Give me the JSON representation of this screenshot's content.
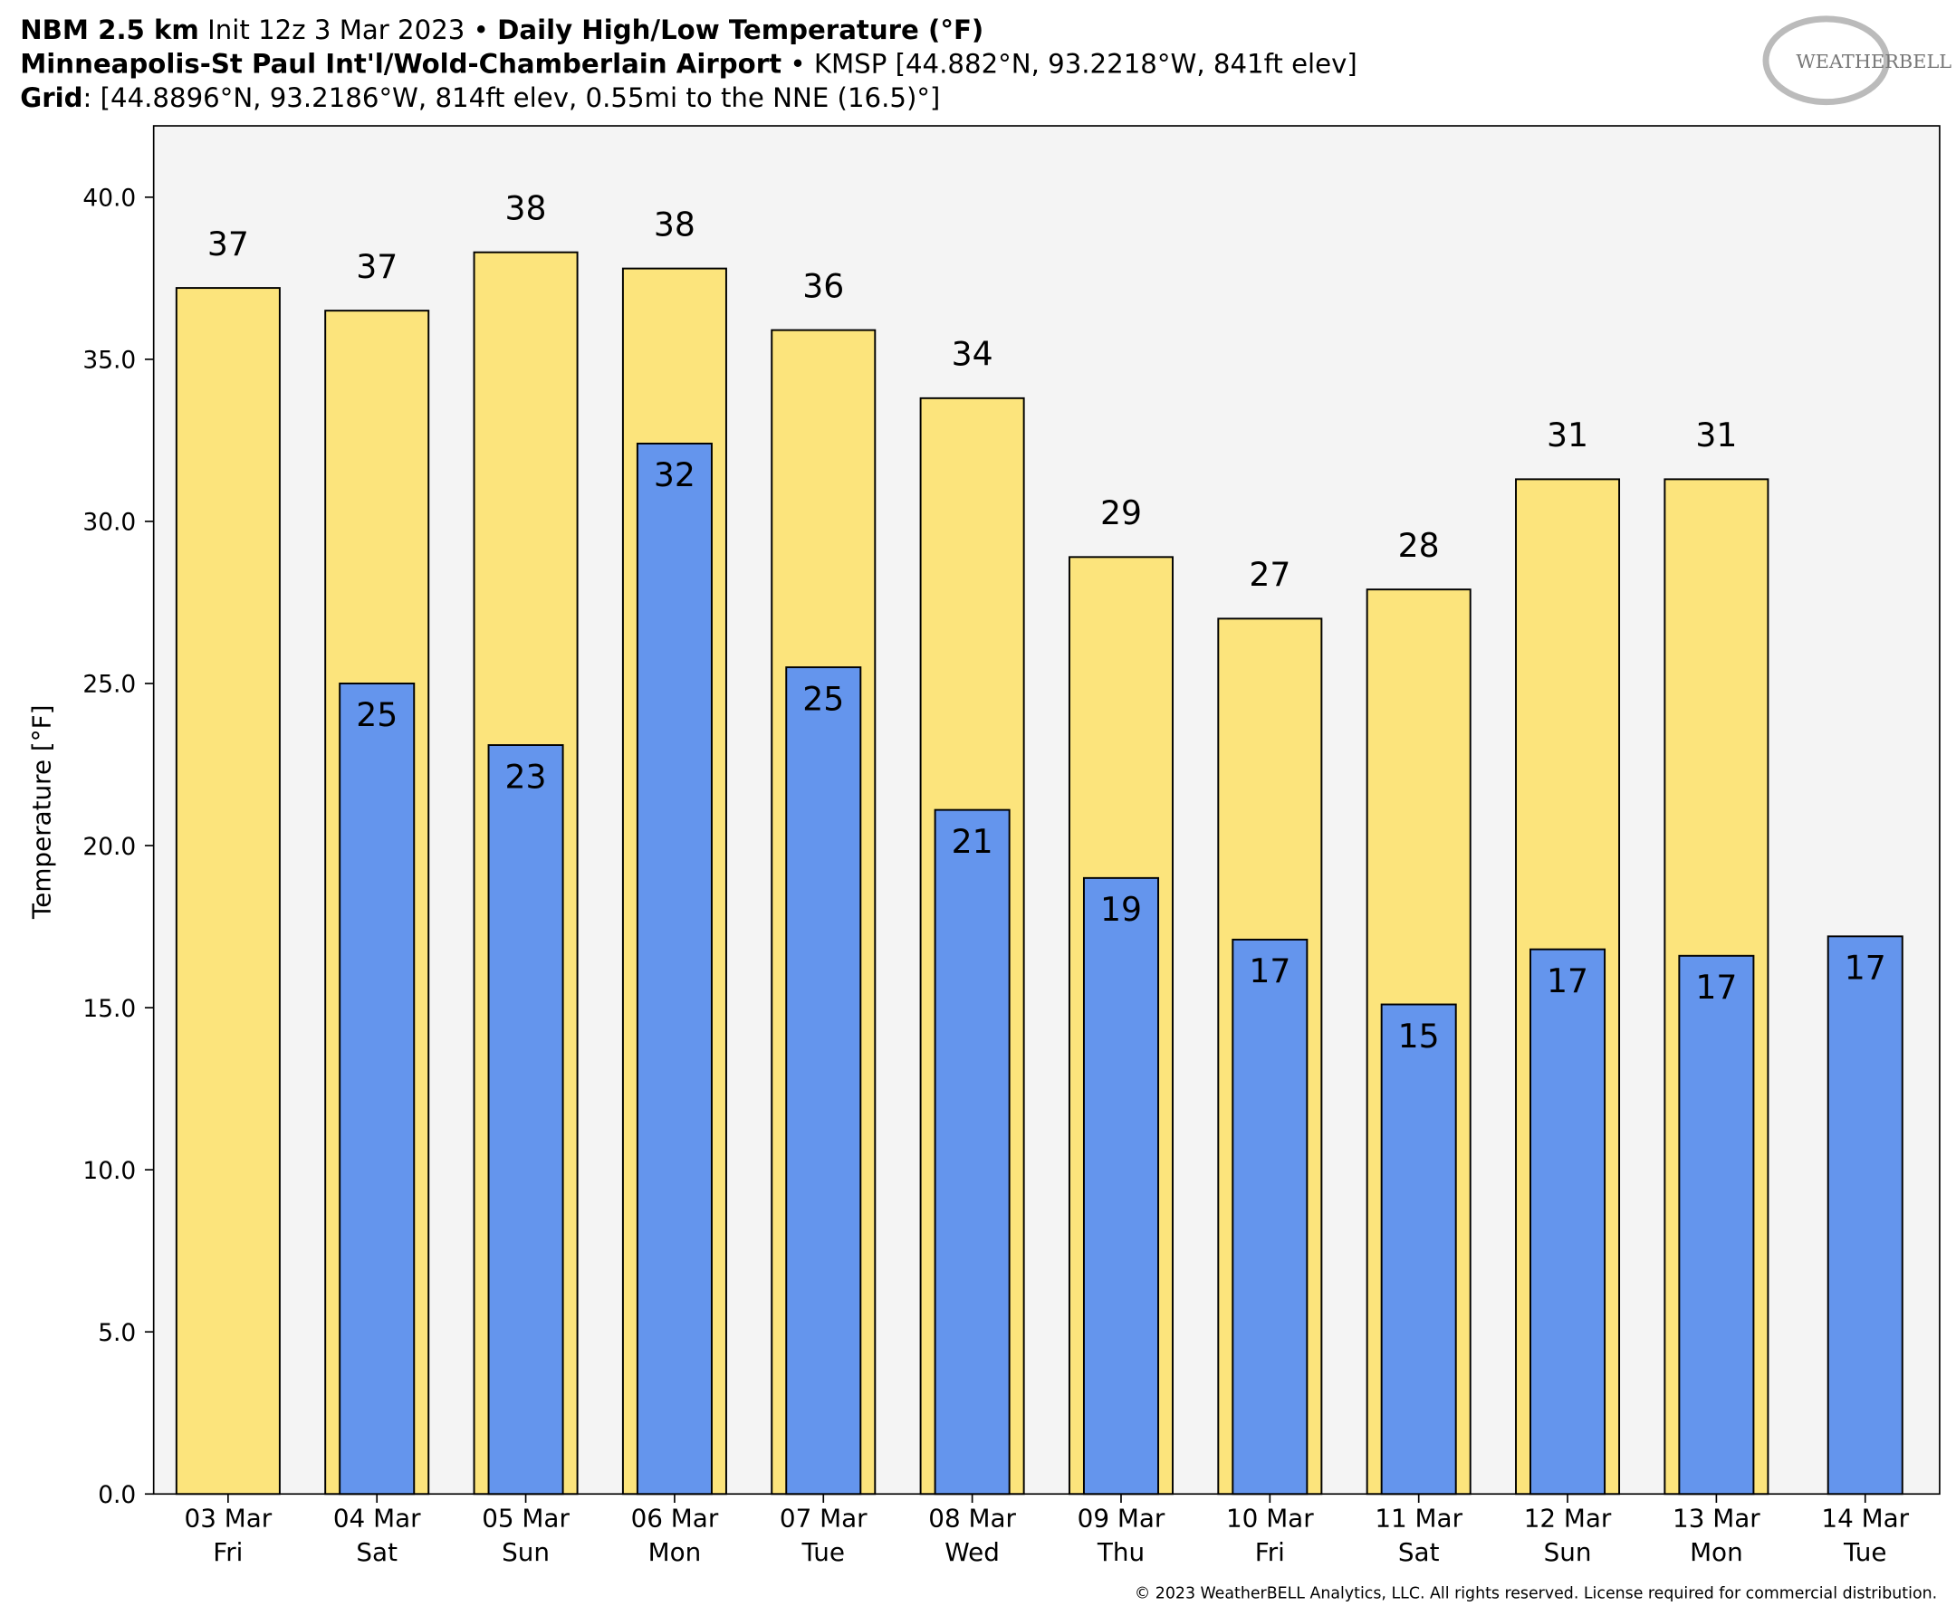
{
  "chart_data": {
    "type": "bar",
    "title": {
      "model": "NBM 2.5 km",
      "init": "Init 12z 3 Mar 2023 •",
      "product": "Daily High/Low Temperature (°F)"
    },
    "subtitle": {
      "station": "Minneapolis-St Paul Int'l/Wold-Chamberlain Airport",
      "station_info": "• KMSP [44.882°N, 93.2218°W, 841ft elev]",
      "grid_key": "Grid",
      "grid_info": ": [44.8896°N, 93.2186°W, 814ft elev, 0.55mi to the NNE (16.5)°]"
    },
    "logo": "WEATHERBELL",
    "y_label": "Temperature [°F]",
    "copyright": "© 2023 WeatherBELL Analytics, LLC. All rights reserved. License required for commercial distribution.",
    "categories": [
      "03 Mar",
      "04 Mar",
      "05 Mar",
      "06 Mar",
      "07 Mar",
      "08 Mar",
      "09 Mar",
      "10 Mar",
      "11 Mar",
      "12 Mar",
      "13 Mar",
      "14 Mar"
    ],
    "weekdays": [
      "Fri",
      "Sat",
      "Sun",
      "Mon",
      "Tue",
      "Wed",
      "Thu",
      "Fri",
      "Sat",
      "Sun",
      "Mon",
      "Tue"
    ],
    "series": [
      {
        "color": "#fce47c",
        "values": [
          37.2,
          36.5,
          38.3,
          37.8,
          35.9,
          33.8,
          28.9,
          27.0,
          27.9,
          31.3,
          31.3,
          null
        ],
        "value_labels": [
          "37",
          "37",
          "38",
          "38",
          "36",
          "34",
          "29",
          "27",
          "28",
          "31",
          "31",
          null
        ]
      },
      {
        "color": "#6495ed",
        "values": [
          null,
          25.0,
          23.1,
          32.4,
          25.5,
          21.1,
          19.0,
          17.1,
          15.1,
          16.8,
          16.6,
          17.2
        ],
        "value_labels": [
          null,
          "25",
          "23",
          "32",
          "25",
          "21",
          "19",
          "17",
          "15",
          "17",
          "17",
          "17"
        ]
      }
    ],
    "ylim": [
      0,
      42.2
    ],
    "yticks": [
      {
        "value": 0,
        "label": "0.0"
      },
      {
        "value": 5,
        "label": "5.0"
      },
      {
        "value": 10,
        "label": "10.0"
      },
      {
        "value": 15,
        "label": "15.0"
      },
      {
        "value": 20,
        "label": "20.0"
      },
      {
        "value": 25,
        "label": "25.0"
      },
      {
        "value": 30,
        "label": "30.0"
      },
      {
        "value": 35,
        "label": "35.0"
      },
      {
        "value": 40,
        "label": "40.0"
      }
    ]
  }
}
